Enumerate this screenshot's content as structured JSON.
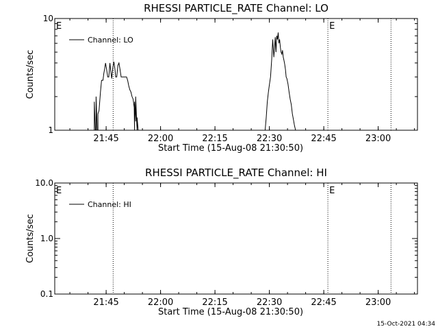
{
  "chart_data": [
    {
      "type": "line",
      "title": "RHESSI PARTICLE_RATE Channel: LO",
      "xlabel": "Start Time (15-Aug-08 21:30:50)",
      "ylabel": "Counts/sec",
      "x_unit": "minutes after 21:30:50",
      "xlim": [
        0,
        100
      ],
      "ylim": [
        1,
        10
      ],
      "yscale": "log",
      "x_ticks": [
        "21:45",
        "22:00",
        "22:15",
        "22:30",
        "22:45",
        "23:00"
      ],
      "x_tick_minutes": [
        14.17,
        29.17,
        44.17,
        59.17,
        74.17,
        89.17
      ],
      "y_ticks": [
        "1",
        "10"
      ],
      "y_tick_values": [
        1,
        10
      ],
      "legend": "top-left",
      "annotations": [
        {
          "text": "E",
          "x": 0
        },
        {
          "text": "E",
          "x": 75.3
        }
      ],
      "vlines": [
        16.1,
        75.3,
        92.7
      ],
      "series": [
        {
          "name": "Channel: LO",
          "x": [
            10.9,
            10.9,
            11.2,
            11.4,
            11.4,
            11.7,
            11.9,
            11.9,
            12.2,
            12.6,
            12.9,
            13.3,
            13.5,
            13.8,
            14.0,
            14.3,
            14.6,
            14.9,
            15.2,
            15.4,
            15.7,
            16.0,
            16.3,
            16.6,
            16.8,
            17.1,
            17.4,
            17.7,
            18.0,
            18.3,
            18.6,
            18.9,
            19.2,
            19.5,
            19.8,
            20.1,
            20.4,
            20.7,
            21.0,
            21.3,
            21.6,
            21.9,
            22.0,
            22.0,
            22.3,
            22.3,
            22.5,
            22.7,
            22.7,
            23.0,
            58.0,
            58.3,
            58.6,
            58.9,
            59.2,
            59.5,
            59.8,
            60.1,
            60.4,
            60.6,
            60.8,
            61.0,
            61.2,
            61.4,
            61.6,
            61.8,
            62.0,
            62.2,
            62.4,
            62.6,
            62.8,
            63.0,
            63.2,
            63.4,
            63.6,
            63.8,
            64.0,
            64.3,
            64.6,
            64.9,
            65.2,
            65.5,
            65.8,
            66.1,
            66.4,
            66.7
          ],
          "y": [
            1,
            1.8,
            1,
            1,
            2,
            1,
            1,
            1.4,
            1.5,
            2.2,
            2.8,
            2.8,
            3.2,
            3.6,
            4.0,
            3.5,
            3.0,
            3.0,
            4.0,
            3.5,
            2.9,
            3.6,
            4.1,
            3.5,
            3.0,
            3.0,
            3.8,
            4.0,
            3.5,
            3.0,
            3.0,
            3.0,
            3.0,
            3.0,
            3.0,
            2.8,
            2.5,
            2.3,
            2.2,
            2.0,
            1.9,
            1.6,
            1,
            1.8,
            1.2,
            2.0,
            1.4,
            1,
            1.3,
            1,
            1,
            1.3,
            1.8,
            2.2,
            2.6,
            3.0,
            4.2,
            6.5,
            4.5,
            5.5,
            6.8,
            5.0,
            7.0,
            6.5,
            7.5,
            6.0,
            6.5,
            5.5,
            5.0,
            4.8,
            5.2,
            4.5,
            4.2,
            3.9,
            3.5,
            3.0,
            2.9,
            2.6,
            2.2,
            1.9,
            1.7,
            1.4,
            1.25,
            1.1,
            1.0,
            1
          ]
        }
      ]
    },
    {
      "type": "line",
      "title": "RHESSI PARTICLE_RATE Channel: HI",
      "xlabel": "Start Time (15-Aug-08 21:30:50)",
      "ylabel": "Counts/sec",
      "x_unit": "minutes after 21:30:50",
      "xlim": [
        0,
        100
      ],
      "ylim": [
        0.1,
        10
      ],
      "yscale": "log",
      "x_ticks": [
        "21:45",
        "22:00",
        "22:15",
        "22:30",
        "22:45",
        "23:00"
      ],
      "x_tick_minutes": [
        14.17,
        29.17,
        44.17,
        59.17,
        74.17,
        89.17
      ],
      "y_ticks": [
        "0.1",
        "1.0",
        "10.0"
      ],
      "y_tick_values": [
        0.1,
        1,
        10
      ],
      "legend": "top-left",
      "annotations": [
        {
          "text": "E",
          "x": 0
        },
        {
          "text": "E",
          "x": 75.3
        }
      ],
      "vlines": [
        16.1,
        75.3,
        92.7
      ],
      "series": [
        {
          "name": "Channel: HI",
          "x": [],
          "y": []
        }
      ]
    }
  ],
  "footer": {
    "timestamp": "15-Oct-2021 04:34"
  }
}
